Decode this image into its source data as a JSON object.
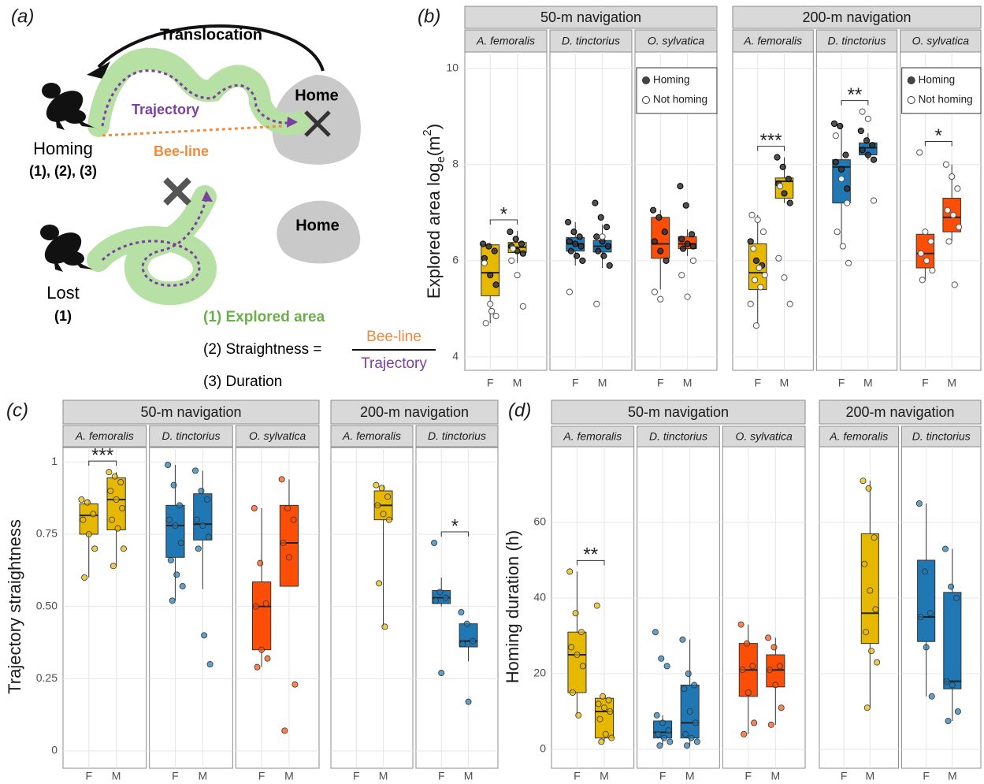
{
  "diagram": {
    "panel_label": "(a)",
    "translocation": "Translocation",
    "trajectory": "Trajectory",
    "home": "Home",
    "homing": "Homing",
    "homing_metrics": "(1), (2), (3)",
    "bee_line": "Bee-line",
    "home_lost": "Home",
    "lost": "Lost",
    "lost_metrics": "(1)",
    "metric1": "(1) Explored area",
    "metric2": "(2) Straightness =",
    "fraction_top": "Bee-line",
    "fraction_bottom": "Trajectory",
    "metric3": "(3) Duration"
  },
  "chart_data": [
    {
      "type": "box",
      "panel_label": "(b)",
      "ylabel": [
        "Explored area log",
        "e",
        "(m",
        "2",
        ")"
      ],
      "ylim": [
        3.72,
        10.34
      ],
      "yticks": [
        4,
        6,
        8,
        10
      ],
      "categories": [
        "F",
        "M"
      ],
      "legend": [
        "Homing",
        "Not homing"
      ],
      "groups": [
        {
          "title": "50-m navigation",
          "facets": [
            {
              "title": "A. femoralis",
              "color": "#E7B800",
              "significance": "*",
              "boxes": [
                [
                  4.7,
                  5.27,
                  5.75,
                  6.33,
                  6.35
                ],
                [
                  5.95,
                  6.17,
                  6.28,
                  6.38,
                  6.62
                ]
              ],
              "homing": [
                [
                  6.35,
                  6.3,
                  6.2,
                  6.05,
                  5.7,
                  5.5
                ],
                [
                  6.6,
                  6.45,
                  6.35,
                  6.3,
                  6.2,
                  6.15
                ]
              ],
              "not_homing": [
                [
                  5.95,
                  5.1,
                  4.85,
                  4.7,
                  4.95
                ],
                [
                  6.0,
                  5.7,
                  5.05,
                  6.25
                ]
              ]
            },
            {
              "title": "D. tinctorius",
              "color": "#1F78B4",
              "boxes": [
                [
                  5.9,
                  6.2,
                  6.35,
                  6.48,
                  6.8
                ],
                [
                  5.85,
                  6.18,
                  6.3,
                  6.42,
                  6.75
                ]
              ],
              "homing": [
                [
                  6.8,
                  6.6,
                  6.5,
                  6.4,
                  6.35,
                  6.3,
                  6.2,
                  6.1,
                  6.0
                ],
                [
                  7.2,
                  6.9,
                  6.7,
                  6.5,
                  6.4,
                  6.3,
                  6.2,
                  6.1,
                  5.9
                ]
              ],
              "not_homing": [
                [
                  5.35
                ],
                [
                  5.1,
                  6.5
                ]
              ]
            },
            {
              "title": "O. sylvatica",
              "color": "#FC4E07",
              "show_legend": true,
              "boxes": [
                [
                  5.4,
                  6.05,
                  6.35,
                  6.9,
                  7.05
                ],
                [
                  6.1,
                  6.25,
                  6.35,
                  6.5,
                  6.65
                ]
              ],
              "homing": [
                [
                  7.05,
                  6.9,
                  6.6,
                  6.4,
                  6.2,
                  6.0
                ],
                [
                  7.55,
                  7.15,
                  6.55,
                  6.45,
                  6.35,
                  6.3,
                  6.25
                ]
              ],
              "not_homing": [
                [
                  5.35,
                  5.2
                ],
                [
                  5.7,
                  5.25,
                  6.0
                ]
              ]
            }
          ]
        },
        {
          "title": "200-m navigation",
          "facets": [
            {
              "title": "A. femoralis",
              "color": "#E7B800",
              "significance": "***",
              "boxes": [
                [
                  4.65,
                  5.4,
                  5.75,
                  6.35,
                  6.95
                ],
                [
                  7.2,
                  7.3,
                  7.65,
                  7.72,
                  8.15
                ]
              ],
              "homing": [
                [
                  6.4,
                  6.0,
                  5.9
                ],
                [
                  8.15,
                  7.95,
                  7.7,
                  7.6,
                  7.4,
                  7.2
                ]
              ],
              "not_homing": [
                [
                  6.95,
                  6.85,
                  6.6,
                  6.25,
                  5.85,
                  5.7,
                  5.6,
                  5.45,
                  5.1,
                  4.65
                ],
                [
                  6.05,
                  5.65,
                  5.1,
                  7.55
                ]
              ]
            },
            {
              "title": "D. tinctorius",
              "color": "#1F78B4",
              "significance": "**",
              "boxes": [
                [
                  6.3,
                  7.2,
                  7.95,
                  8.1,
                  8.85
                ],
                [
                  8.1,
                  8.2,
                  8.35,
                  8.45,
                  8.65
                ]
              ],
              "homing": [
                [
                  8.85,
                  8.8,
                  8.2,
                  8.05,
                  7.9,
                  7.5
                ],
                [
                  8.7,
                  8.5,
                  8.4,
                  8.3,
                  8.2,
                  8.1
                ]
              ],
              "not_homing": [
                [
                  8.6,
                  7.7,
                  7.2,
                  6.6,
                  6.3,
                  5.95
                ],
                [
                  9.1,
                  8.95,
                  7.25
                ]
              ]
            },
            {
              "title": "O. sylvatica",
              "color": "#FC4E07",
              "significance": "*",
              "show_legend": true,
              "boxes": [
                [
                  5.6,
                  5.85,
                  6.15,
                  6.55,
                  6.6
                ],
                [
                  6.4,
                  6.6,
                  6.9,
                  7.3,
                  8.0
                ]
              ],
              "homing": [
                [],
                []
              ],
              "not_homing": [
                [
                  8.25,
                  6.6,
                  6.4,
                  6.15,
                  6.0,
                  5.8,
                  5.6
                ],
                [
                  8.0,
                  7.75,
                  7.5,
                  7.05,
                  6.95,
                  6.7,
                  6.4,
                  5.5
                ]
              ]
            }
          ]
        }
      ]
    },
    {
      "type": "box",
      "panel_label": "(c)",
      "ylabel": "Trajectory straightness",
      "ylim": [
        -0.06,
        1.05
      ],
      "yticks": [
        0,
        0.25,
        {
          "value": 0.5,
          "label": "0.50"
        },
        0.75,
        1
      ],
      "categories": [
        "F",
        "M"
      ],
      "groups": [
        {
          "title": "50-m navigation",
          "facets": [
            {
              "title": "A. femoralis",
              "color": "#E7B800",
              "significance": "***",
              "boxes": [
                [
                  0.6,
                  0.75,
                  0.815,
                  0.855,
                  0.87
                ],
                [
                  0.64,
                  0.765,
                  0.87,
                  0.945,
                  0.965
                ]
              ],
              "points": [
                [
                  0.87,
                  0.86,
                  0.82,
                  0.8,
                  0.75,
                  0.7,
                  0.6
                ],
                [
                  0.965,
                  0.95,
                  0.93,
                  0.9,
                  0.87,
                  0.84,
                  0.8,
                  0.77,
                  0.7,
                  0.64
                ]
              ]
            },
            {
              "title": "D. tinctorius",
              "color": "#1F78B4",
              "boxes": [
                [
                  0.52,
                  0.67,
                  0.78,
                  0.85,
                  0.99
                ],
                [
                  0.56,
                  0.73,
                  0.785,
                  0.89,
                  0.97
                ]
              ],
              "points": [
                [
                  0.99,
                  0.92,
                  0.85,
                  0.8,
                  0.78,
                  0.72,
                  0.66,
                  0.61,
                  0.57,
                  0.52
                ],
                [
                  0.97,
                  0.9,
                  0.87,
                  0.8,
                  0.78,
                  0.74,
                  0.7,
                  0.4,
                  0.3
                ]
              ]
            },
            {
              "title": "O. sylvatica",
              "color": "#FC4E07",
              "boxes": [
                [
                  0.29,
                  0.35,
                  0.5,
                  0.585,
                  0.84
                ],
                [
                  0.57,
                  0.57,
                  0.72,
                  0.85,
                  0.94
                ]
              ],
              "points": [
                [
                  0.84,
                  0.65,
                  0.51,
                  0.5,
                  0.35,
                  0.32,
                  0.29
                ],
                [
                  0.94,
                  0.84,
                  0.8,
                  0.72,
                  0.67,
                  0.23,
                  0.07
                ]
              ]
            }
          ]
        },
        {
          "title": "200-m navigation",
          "facets": [
            {
              "title": "A. femoralis",
              "color": "#E7B800",
              "boxes": [
                null,
                [
                  0.43,
                  0.8,
                  0.85,
                  0.9,
                  0.92
                ]
              ],
              "points": [
                [],
                [
                  0.92,
                  0.91,
                  0.88,
                  0.85,
                  0.82,
                  0.8,
                  0.58,
                  0.43
                ]
              ]
            },
            {
              "title": "D. tinctorius",
              "color": "#1F78B4",
              "significance": "*",
              "boxes": [
                [
                  0.5,
                  0.51,
                  0.53,
                  0.555,
                  0.6
                ],
                [
                  0.31,
                  0.36,
                  0.38,
                  0.44,
                  0.44
                ]
              ],
              "points": [
                [
                  0.72,
                  0.55,
                  0.53,
                  0.52,
                  0.27
                ],
                [
                  0.48,
                  0.44,
                  0.38,
                  0.37,
                  0.17
                ]
              ]
            }
          ]
        }
      ]
    },
    {
      "type": "box",
      "panel_label": "(d)",
      "ylabel": "Homing duration (h)",
      "ylim": [
        -5,
        80
      ],
      "yticks": [
        0,
        20,
        40,
        60
      ],
      "categories": [
        "F",
        "M"
      ],
      "groups": [
        {
          "title": "50-m navigation",
          "facets": [
            {
              "title": "A. femoralis",
              "color": "#E7B800",
              "significance": "**",
              "boxes": [
                [
                  9,
                  15,
                  25,
                  31,
                  47
                ],
                [
                  2,
                  3,
                  10,
                  13.5,
                  14
                ]
              ],
              "points": [
                [
                  47,
                  36,
                  31,
                  27,
                  25,
                  22,
                  15,
                  9
                ],
                [
                  38,
                  14,
                  13,
                  12,
                  11,
                  10,
                  8,
                  4,
                  3,
                  2
                ]
              ]
            },
            {
              "title": "D. tinctorius",
              "color": "#1F78B4",
              "boxes": [
                [
                  1,
                  3,
                  4.5,
                  7.5,
                  9
                ],
                [
                  1,
                  3,
                  7,
                  17,
                  29
                ]
              ],
              "points": [
                [
                  31,
                  24,
                  22,
                  9,
                  7,
                  5,
                  4,
                  3,
                  2,
                  1
                ],
                [
                  29,
                  20,
                  17,
                  16,
                  10,
                  7,
                  4,
                  3,
                  2,
                  1
                ]
              ]
            },
            {
              "title": "O. sylvatica",
              "color": "#FC4E07",
              "boxes": [
                [
                  4,
                  14,
                  21,
                  28,
                  33
                ],
                [
                  6.5,
                  16.5,
                  21,
                  25,
                  29.5
                ]
              ],
              "points": [
                [
                  33,
                  28,
                  22,
                  21,
                  15,
                  7,
                  4
                ],
                [
                  29.5,
                  27,
                  22,
                  21,
                  17,
                  11,
                  6.5
                ]
              ]
            }
          ]
        },
        {
          "title": "200-m navigation",
          "facets": [
            {
              "title": "A. femoralis",
              "color": "#E7B800",
              "boxes": [
                null,
                [
                  11,
                  28,
                  36,
                  57,
                  71
                ]
              ],
              "points": [
                [],
                [
                  71,
                  69,
                  56,
                  49,
                  42,
                  37,
                  31,
                  26,
                  23,
                  11
                ]
              ]
            },
            {
              "title": "D. tinctorius",
              "color": "#1F78B4",
              "boxes": [
                [
                  14,
                  28.5,
                  35,
                  50,
                  65
                ],
                [
                  7.5,
                  16,
                  18,
                  41.5,
                  53
                ]
              ],
              "points": [
                [
                  65,
                  47,
                  36,
                  35,
                  27,
                  14
                ],
                [
                  53,
                  43,
                  40,
                  18,
                  17,
                  10,
                  7.5
                ]
              ]
            }
          ]
        }
      ]
    }
  ]
}
